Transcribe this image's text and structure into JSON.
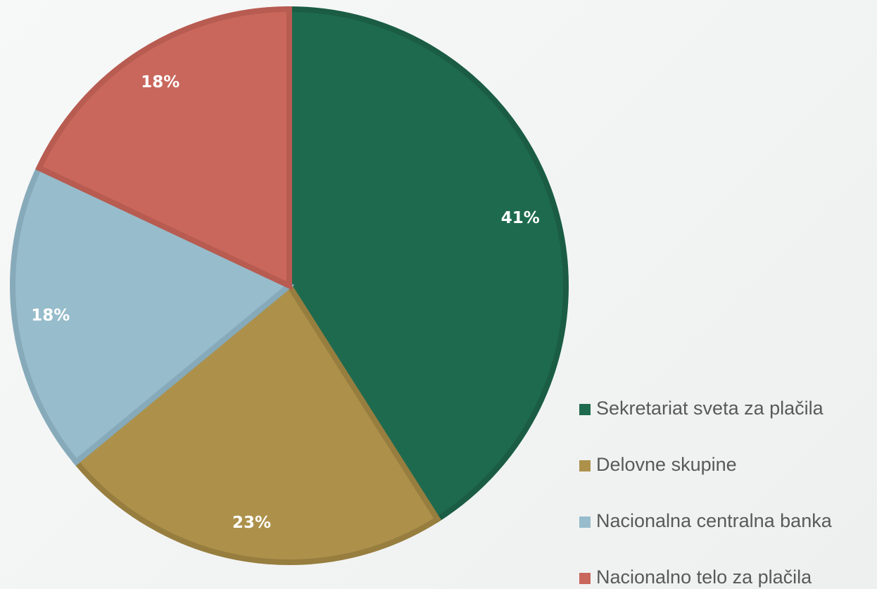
{
  "chart_data": {
    "type": "pie",
    "categories": [
      "Sekretariat sveta za plačila",
      "Delovne skupine",
      "Nacionalna centralna banka",
      "Nacionalno telo za plačila"
    ],
    "values": [
      41,
      23,
      18,
      18
    ],
    "value_labels": [
      "41%",
      "23%",
      "18%",
      "18%"
    ],
    "colors": [
      "#1e6a4f",
      "#ad914b",
      "#97bccb",
      "#c9675c"
    ],
    "edgecolors": [
      "#1a5c44",
      "#977e3f",
      "#86aab9",
      "#b85b51"
    ],
    "start_angle": 90,
    "direction": "clockwise",
    "legend": "lower right"
  }
}
